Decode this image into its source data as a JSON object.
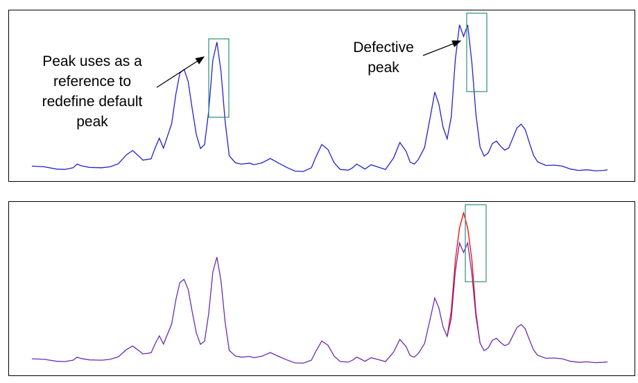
{
  "annotations": {
    "reference_lines": [
      "Peak uses as a",
      "reference to",
      "redefine default",
      "peak"
    ],
    "defective_lines": [
      "Defective",
      "peak"
    ]
  },
  "colors": {
    "trace": "#2020d0",
    "corrected_trace": "#6a2bb0",
    "corrected_peak": "#ff0000",
    "highlight_box": "#2e8b7a",
    "frame": "#000000",
    "arrow": "#000000"
  },
  "chart_data": [
    {
      "type": "line",
      "panel": "top",
      "description_shown": "original trace with a split (defective) peak",
      "series": [
        {
          "values": [
            [
              0,
              2.0
            ],
            [
              3,
              1.8
            ],
            [
              6,
              1.1
            ],
            [
              8,
              1.0
            ],
            [
              10,
              1.5
            ],
            [
              11,
              2.6
            ],
            [
              12,
              2.1
            ],
            [
              14,
              1.6
            ],
            [
              17,
              1.5
            ],
            [
              19,
              1.8
            ],
            [
              21,
              2.7
            ],
            [
              23,
              5.4
            ],
            [
              24.5,
              6.7
            ],
            [
              26,
              5.0
            ],
            [
              27,
              3.8
            ],
            [
              29,
              4.2
            ],
            [
              30,
              7.6
            ],
            [
              31,
              10.4
            ],
            [
              32,
              7.4
            ],
            [
              34,
              14.8
            ],
            [
              35,
              23.5
            ],
            [
              36,
              30.0
            ],
            [
              37,
              31.1
            ],
            [
              38,
              27.5
            ],
            [
              39,
              19.2
            ],
            [
              40,
              11.5
            ],
            [
              41,
              7.3
            ],
            [
              42,
              8.5
            ],
            [
              43,
              18.5
            ],
            [
              44,
              33.8
            ],
            [
              45,
              39.3
            ],
            [
              46,
              30.5
            ],
            [
              47,
              15.5
            ],
            [
              48,
              5.1
            ],
            [
              49.5,
              3.0
            ],
            [
              51,
              2.6
            ],
            [
              53,
              2.9
            ],
            [
              54,
              2.4
            ],
            [
              56,
              3.0
            ],
            [
              58,
              4.3
            ],
            [
              60,
              2.9
            ],
            [
              62,
              1.6
            ],
            [
              64,
              0.5
            ],
            [
              66,
              0.4
            ],
            [
              68,
              1.5
            ],
            [
              69,
              4.6
            ],
            [
              70.5,
              8.5
            ],
            [
              72,
              7.0
            ],
            [
              73.5,
              3.0
            ],
            [
              75,
              1.0
            ],
            [
              77,
              0.8
            ],
            [
              78,
              1.5
            ],
            [
              79,
              2.6
            ],
            [
              80,
              1.9
            ],
            [
              81,
              1.1
            ],
            [
              82.5,
              2.4
            ],
            [
              84,
              1.8
            ],
            [
              86,
              1.0
            ],
            [
              88,
              4.5
            ],
            [
              89.5,
              9.1
            ],
            [
              91,
              6.5
            ],
            [
              92,
              3.2
            ],
            [
              93,
              2.6
            ],
            [
              94,
              4.0
            ],
            [
              95.5,
              7.6
            ],
            [
              97,
              17.5
            ],
            [
              98,
              24.3
            ],
            [
              99,
              20.6
            ],
            [
              100,
              13.7
            ],
            [
              101,
              10.2
            ],
            [
              102,
              16.8
            ],
            [
              103,
              34.1
            ],
            [
              104,
              44.5
            ],
            [
              105,
              41.0
            ],
            [
              106,
              44.5
            ],
            [
              107,
              33.2
            ],
            [
              108,
              17.5
            ],
            [
              109,
              7.8
            ],
            [
              110,
              5.0
            ],
            [
              111,
              6.0
            ],
            [
              112,
              8.8
            ],
            [
              113,
              9.5
            ],
            [
              114,
              8.0
            ],
            [
              115,
              6.8
            ],
            [
              116,
              7.5
            ],
            [
              117,
              10.5
            ],
            [
              118,
              13.5
            ],
            [
              119,
              14.6
            ],
            [
              120,
              13.0
            ],
            [
              121,
              9.0
            ],
            [
              122,
              5.3
            ],
            [
              123,
              3.3
            ],
            [
              125,
              2.2
            ],
            [
              127,
              2.3
            ],
            [
              129,
              2.0
            ],
            [
              131,
              1.1
            ],
            [
              133,
              0.7
            ],
            [
              135,
              0.9
            ],
            [
              137,
              0.6
            ],
            [
              139,
              0.7
            ],
            [
              140,
              0.9
            ]
          ]
        }
      ],
      "ylim": [
        0,
        48
      ]
    },
    {
      "type": "line",
      "panel": "bottom",
      "description_shown": "trace after the defective peak is redefined",
      "series": [
        {
          "values": [
            [
              0,
              2.0
            ],
            [
              3,
              1.8
            ],
            [
              6,
              1.1
            ],
            [
              8,
              1.0
            ],
            [
              10,
              1.5
            ],
            [
              11,
              2.6
            ],
            [
              12,
              2.1
            ],
            [
              14,
              1.6
            ],
            [
              17,
              1.5
            ],
            [
              19,
              1.8
            ],
            [
              21,
              2.7
            ],
            [
              23,
              5.4
            ],
            [
              24.5,
              6.7
            ],
            [
              26,
              5.0
            ],
            [
              27,
              3.8
            ],
            [
              29,
              4.2
            ],
            [
              30,
              7.6
            ],
            [
              31,
              10.4
            ],
            [
              32,
              7.4
            ],
            [
              34,
              14.8
            ],
            [
              35,
              23.5
            ],
            [
              36,
              30.0
            ],
            [
              37,
              31.1
            ],
            [
              38,
              27.5
            ],
            [
              39,
              19.2
            ],
            [
              40,
              11.5
            ],
            [
              41,
              7.3
            ],
            [
              42,
              8.5
            ],
            [
              43,
              18.5
            ],
            [
              44,
              33.8
            ],
            [
              45,
              39.3
            ],
            [
              46,
              30.5
            ],
            [
              47,
              15.5
            ],
            [
              48,
              5.1
            ],
            [
              49.5,
              3.0
            ],
            [
              51,
              2.6
            ],
            [
              53,
              2.9
            ],
            [
              54,
              2.4
            ],
            [
              56,
              3.0
            ],
            [
              58,
              4.3
            ],
            [
              60,
              2.9
            ],
            [
              62,
              1.6
            ],
            [
              64,
              0.5
            ],
            [
              66,
              0.4
            ],
            [
              68,
              1.5
            ],
            [
              69,
              4.6
            ],
            [
              70.5,
              8.5
            ],
            [
              72,
              7.0
            ],
            [
              73.5,
              3.0
            ],
            [
              75,
              1.0
            ],
            [
              77,
              0.8
            ],
            [
              78,
              1.5
            ],
            [
              79,
              2.6
            ],
            [
              80,
              1.9
            ],
            [
              81,
              1.1
            ],
            [
              82.5,
              2.4
            ],
            [
              84,
              1.8
            ],
            [
              86,
              1.0
            ],
            [
              88,
              4.5
            ],
            [
              89.5,
              9.1
            ],
            [
              91,
              6.5
            ],
            [
              92,
              3.2
            ],
            [
              93,
              2.6
            ],
            [
              94,
              4.0
            ],
            [
              95.5,
              7.6
            ],
            [
              97,
              17.5
            ],
            [
              98,
              24.3
            ],
            [
              99,
              20.6
            ],
            [
              100,
              13.7
            ],
            [
              101,
              10.2
            ],
            [
              102,
              16.8
            ],
            [
              103,
              34.1
            ],
            [
              104,
              44.5
            ],
            [
              105,
              41.0
            ],
            [
              106,
              44.5
            ],
            [
              107,
              33.2
            ],
            [
              108,
              17.5
            ],
            [
              109,
              7.8
            ],
            [
              110,
              5.0
            ],
            [
              111,
              6.0
            ],
            [
              112,
              8.8
            ],
            [
              113,
              9.5
            ],
            [
              114,
              8.0
            ],
            [
              115,
              6.8
            ],
            [
              116,
              7.5
            ],
            [
              117,
              10.5
            ],
            [
              118,
              13.5
            ],
            [
              119,
              14.6
            ],
            [
              120,
              13.0
            ],
            [
              121,
              9.0
            ],
            [
              122,
              5.3
            ],
            [
              123,
              3.3
            ],
            [
              125,
              2.2
            ],
            [
              127,
              2.3
            ],
            [
              129,
              2.0
            ],
            [
              131,
              1.1
            ],
            [
              133,
              0.7
            ],
            [
              135,
              0.9
            ],
            [
              137,
              0.6
            ],
            [
              139,
              0.7
            ],
            [
              140,
              0.9
            ]
          ]
        },
        {
          "values": [
            [
              101,
              10.2
            ],
            [
              102,
              19.5
            ],
            [
              103,
              38.0
            ],
            [
              104,
              50.0
            ],
            [
              105,
              55.5
            ],
            [
              106,
              50.0
            ],
            [
              107,
              38.5
            ],
            [
              108,
              19.0
            ],
            [
              109,
              7.8
            ]
          ]
        }
      ],
      "ylim": [
        0,
        58
      ]
    }
  ]
}
